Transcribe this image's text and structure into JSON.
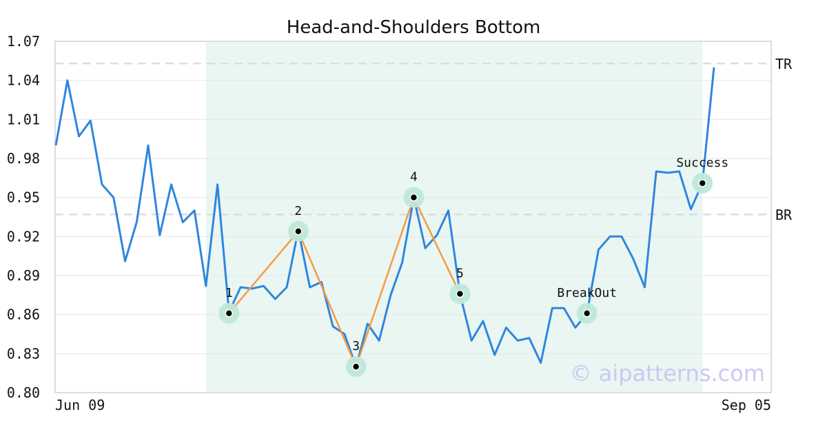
{
  "chart_data": {
    "type": "line",
    "title": "Head-and-Shoulders Bottom",
    "xlabel": "",
    "ylabel": "",
    "ylim": [
      0.8,
      1.07
    ],
    "yticks": [
      "1.07",
      "1.04",
      "1.01",
      "0.98",
      "0.95",
      "0.92",
      "0.89",
      "0.86",
      "0.83",
      "0.80"
    ],
    "xticks": [
      "Jun 09",
      "Sep 05"
    ],
    "grid": true,
    "series": [
      {
        "values": [
          0.99,
          1.04,
          0.997,
          1.009,
          0.96,
          0.95,
          0.901,
          0.931,
          0.99,
          0.921,
          0.96,
          0.931,
          0.94,
          0.882,
          0.96,
          0.862,
          0.881,
          0.88,
          0.882,
          0.872,
          0.881,
          0.925,
          0.881,
          0.885,
          0.851,
          0.845,
          0.82,
          0.853,
          0.84,
          0.875,
          0.9,
          0.95,
          0.911,
          0.921,
          0.94,
          0.876,
          0.84,
          0.855,
          0.829,
          0.85,
          0.84,
          0.842,
          0.823,
          0.865,
          0.865,
          0.85,
          0.861,
          0.91,
          0.92,
          0.92,
          0.903,
          0.881,
          0.97,
          0.969,
          0.97,
          0.941,
          0.961,
          1.05
        ],
        "color": "#2e86de"
      }
    ],
    "pattern": {
      "color": "#f59b42",
      "shade_from_index": 13,
      "shade_to_index": 56,
      "shade_color": "#eaf6f2",
      "points": [
        {
          "label": "1",
          "index": 15,
          "value": 0.861
        },
        {
          "label": "2",
          "index": 21,
          "value": 0.924
        },
        {
          "label": "3",
          "index": 26,
          "value": 0.82
        },
        {
          "label": "4",
          "index": 31,
          "value": 0.95
        },
        {
          "label": "5",
          "index": 35,
          "value": 0.876
        }
      ]
    },
    "markers": [
      {
        "label": "BreakOut",
        "index": 46,
        "value": 0.861
      },
      {
        "label": "Success",
        "index": 56,
        "value": 0.961
      }
    ],
    "levels": [
      {
        "label": "TR",
        "value": 1.053
      },
      {
        "label": "BR",
        "value": 0.937
      }
    ],
    "watermark": "© aipatterns.com"
  }
}
